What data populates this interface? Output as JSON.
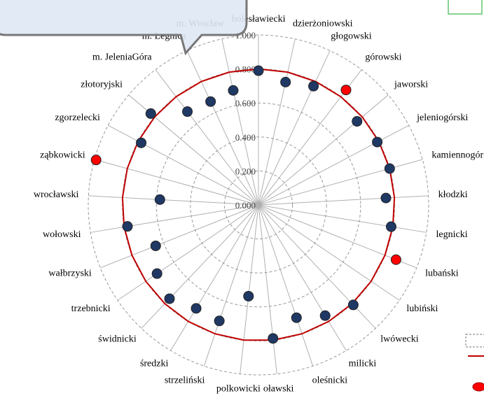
{
  "chart_data": {
    "type": "radar",
    "categories": [
      "bolesławiecki",
      "dzierżoniowski",
      "głogowski",
      "górowski",
      "jaworski",
      "jeleniogórski",
      "kamiennogórski",
      "kłodzki",
      "legnicki",
      "lubański",
      "lubiński",
      "lwówecki",
      "milicki",
      "oleśnicki",
      "oławski",
      "polkowicki",
      "strzeliński",
      "średzki",
      "świdnicki",
      "trzebnicki",
      "wałbrzyski",
      "wołowski",
      "wrocławski",
      "ząbkowicki",
      "zgorzelecki",
      "złotoryjski",
      "m. JeleniaGóra",
      "m. Legnica",
      "m. Wrocław"
    ],
    "ylim": [
      0,
      1
    ],
    "yticks": [
      {
        "value": 0,
        "label": "0.000"
      },
      {
        "value": 0.2,
        "label": "0.200"
      },
      {
        "value": 0.4,
        "label": "0.400"
      },
      {
        "value": 0.6,
        "label": "0.600"
      },
      {
        "value": 0.8,
        "label": "0.800"
      },
      {
        "value": 1,
        "label": "1.000"
      }
    ],
    "grid": true,
    "series": [
      {
        "kind": "line",
        "color": "#c00000",
        "values": [
          0.8,
          0.8,
          0.8,
          0.8,
          0.8,
          0.8,
          0.8,
          0.8,
          0.8,
          0.8,
          0.8,
          0.8,
          0.8,
          0.8,
          0.8,
          0.8,
          0.8,
          0.8,
          0.8,
          0.8,
          0.8,
          0.8,
          0.8,
          0.8,
          0.8,
          0.8,
          0.8,
          0.8,
          0.8
        ]
      },
      {
        "kind": "points",
        "color": "#1f3864",
        "values": [
          0.79,
          0.74,
          0.77,
          0.85,
          0.76,
          0.79,
          0.8,
          0.75,
          0.79,
          0.87,
          null,
          0.81,
          0.76,
          0.7,
          0.79,
          0.54,
          0.72,
          0.71,
          0.76,
          0.72,
          0.65,
          0.78,
          0.58,
          0.99,
          0.78,
          0.83,
          0.69,
          0.67,
          0.69
        ],
        "colors": [
          "#1f3864",
          "#1f3864",
          "#1f3864",
          "#ff0000",
          "#1f3864",
          "#1f3864",
          "#1f3864",
          "#1f3864",
          "#1f3864",
          "#ff0000",
          "#1f3864",
          "#1f3864",
          "#1f3864",
          "#1f3864",
          "#1f3864",
          "#1f3864",
          "#1f3864",
          "#1f3864",
          "#1f3864",
          "#1f3864",
          "#1f3864",
          "#1f3864",
          "#1f3864",
          "#ff0000",
          "#1f3864",
          "#1f3864",
          "#1f3864",
          "#1f3864",
          "#1f3864"
        ]
      }
    ]
  }
}
